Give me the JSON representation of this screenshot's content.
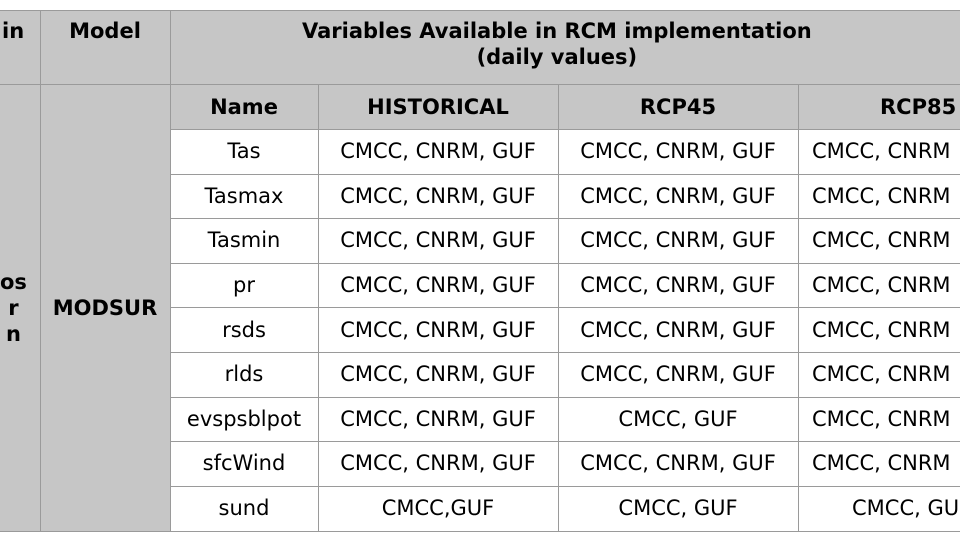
{
  "table": {
    "header": {
      "col0": "in",
      "col1": "Model",
      "col2": "Variables Available in RCM implementation\n(daily values)"
    },
    "group_label": "os\nr\nn",
    "model_name": "MODSUR",
    "subheaders": [
      "Name",
      "HISTORICAL",
      "RCP45",
      "RCP85"
    ],
    "rows": [
      {
        "name": "Tas",
        "historical": "CMCC, CNRM, GUF",
        "rcp45": "CMCC, CNRM, GUF",
        "rcp85": "CMCC, CNRM"
      },
      {
        "name": "Tasmax",
        "historical": "CMCC, CNRM, GUF",
        "rcp45": "CMCC, CNRM, GUF",
        "rcp85": "CMCC, CNRM"
      },
      {
        "name": "Tasmin",
        "historical": "CMCC, CNRM, GUF",
        "rcp45": "CMCC, CNRM, GUF",
        "rcp85": "CMCC, CNRM"
      },
      {
        "name": "pr",
        "historical": "CMCC, CNRM, GUF",
        "rcp45": "CMCC, CNRM, GUF",
        "rcp85": "CMCC, CNRM"
      },
      {
        "name": "rsds",
        "historical": "CMCC, CNRM, GUF",
        "rcp45": "CMCC, CNRM, GUF",
        "rcp85": "CMCC, CNRM"
      },
      {
        "name": "rlds",
        "historical": "CMCC, CNRM, GUF",
        "rcp45": "CMCC, CNRM, GUF",
        "rcp85": "CMCC, CNRM"
      },
      {
        "name": "evspsblpot",
        "historical": "CMCC, CNRM, GUF",
        "rcp45": "CMCC, GUF",
        "rcp85": "CMCC, CNRM"
      },
      {
        "name": "sfcWind",
        "historical": "CMCC, CNRM, GUF",
        "rcp45": "CMCC, CNRM, GUF",
        "rcp85": "CMCC, CNRM"
      },
      {
        "name": "sund",
        "historical": "CMCC,GUF",
        "rcp45": "CMCC,  GUF",
        "rcp85": "CMCC, GU"
      }
    ]
  }
}
